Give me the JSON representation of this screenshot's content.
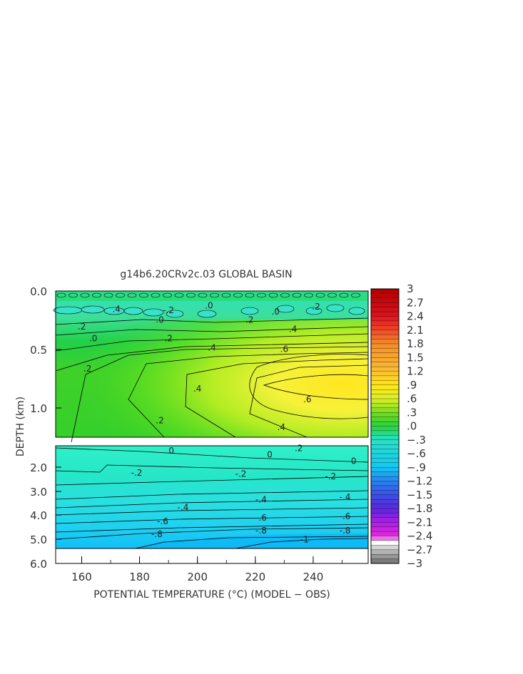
{
  "chart_data": {
    "type": "heatmap",
    "title": "g14b6.20CRv2c.03 GLOBAL BASIN",
    "xlabel": "POTENTIAL TEMPERATURE (°C) (MODEL − OBS)",
    "ylabel": "DEPTH (km)",
    "xlim": [
      151,
      259
    ],
    "x_ticks": [
      160,
      180,
      200,
      220,
      240
    ],
    "upper_panel": {
      "ylim": [
        0.0,
        1.25
      ],
      "y_ticks": [
        "0.0",
        "0.5",
        "1.0"
      ],
      "y_tick_values": [
        0.0,
        0.5,
        1.0
      ],
      "contour_labels": [
        {
          "text": ".4",
          "x": 172,
          "y": 0.18
        },
        {
          "text": "-.2",
          "x": 190,
          "y": 0.19
        },
        {
          "text": ".0",
          "x": 204,
          "y": 0.15
        },
        {
          "text": ".0",
          "x": 227,
          "y": 0.2
        },
        {
          "text": ".2",
          "x": 241,
          "y": 0.16
        },
        {
          "text": ".2",
          "x": 160,
          "y": 0.33
        },
        {
          "text": ".0",
          "x": 187,
          "y": 0.27
        },
        {
          "text": ".2",
          "x": 218,
          "y": 0.27
        },
        {
          "text": ".4",
          "x": 233,
          "y": 0.35
        },
        {
          "text": ".0",
          "x": 164,
          "y": 0.43
        },
        {
          "text": ".2",
          "x": 190,
          "y": 0.43
        },
        {
          "text": ".4",
          "x": 205,
          "y": 0.51
        },
        {
          "text": ".6",
          "x": 230,
          "y": 0.52
        },
        {
          "text": ".2",
          "x": 162,
          "y": 0.69
        },
        {
          "text": ".4",
          "x": 200,
          "y": 0.86
        },
        {
          "text": ".6",
          "x": 238,
          "y": 0.95
        },
        {
          "text": ".2",
          "x": 187,
          "y": 1.13
        },
        {
          "text": ".4",
          "x": 229,
          "y": 1.19
        }
      ]
    },
    "lower_panel": {
      "ylim": [
        1.5,
        5.5
      ],
      "y_ticks": [
        "2.0",
        "3.0",
        "4.0",
        "5.0",
        "6.0"
      ],
      "y_tick_values": [
        2.0,
        3.0,
        4.0,
        5.0,
        6.0
      ],
      "contour_labels": [
        {
          "text": "0",
          "x": 191,
          "y": 1.7
        },
        {
          "text": "0",
          "x": 225,
          "y": 1.85
        },
        {
          "text": ".2",
          "x": 235,
          "y": 1.6
        },
        {
          "text": "0",
          "x": 254,
          "y": 2.1
        },
        {
          "text": "-.2",
          "x": 179,
          "y": 2.55
        },
        {
          "text": "-.2",
          "x": 215,
          "y": 2.6
        },
        {
          "text": "-.2",
          "x": 246,
          "y": 2.7
        },
        {
          "text": "-.4",
          "x": 195,
          "y": 3.9
        },
        {
          "text": "-.4",
          "x": 222,
          "y": 3.6
        },
        {
          "text": "-.4",
          "x": 251,
          "y": 3.5
        },
        {
          "text": "-.6",
          "x": 188,
          "y": 4.45
        },
        {
          "text": "-.6",
          "x": 222,
          "y": 4.3
        },
        {
          "text": "-.6",
          "x": 251,
          "y": 4.25
        },
        {
          "text": "-.8",
          "x": 186,
          "y": 4.95
        },
        {
          "text": "-.8",
          "x": 222,
          "y": 4.8
        },
        {
          "text": "-.8",
          "x": 251,
          "y": 4.8
        },
        {
          "text": "-1",
          "x": 237,
          "y": 5.15
        }
      ]
    },
    "colorbar": {
      "min": -3,
      "max": 3,
      "tick_labels": [
        "3",
        "2.7",
        "2.4",
        "2.1",
        "1.8",
        "1.5",
        "1.2",
        ".9",
        ".6",
        ".3",
        ".0",
        "−.3",
        "−.6",
        "−.9",
        "−1.2",
        "−1.5",
        "−1.8",
        "−2.1",
        "−2.4",
        "−2.7",
        "−3"
      ],
      "tick_values": [
        3,
        2.7,
        2.4,
        2.1,
        1.8,
        1.5,
        1.2,
        0.9,
        0.6,
        0.3,
        0.0,
        -0.3,
        -0.6,
        -0.9,
        -1.2,
        -1.5,
        -1.8,
        -2.1,
        -2.4,
        -2.7,
        -3
      ]
    },
    "colors": {
      "warm_core": "#ffe81a",
      "surface_teal": "#3ee6c8",
      "deep_cyan": "#18c6f0",
      "outline": "#000000"
    }
  }
}
